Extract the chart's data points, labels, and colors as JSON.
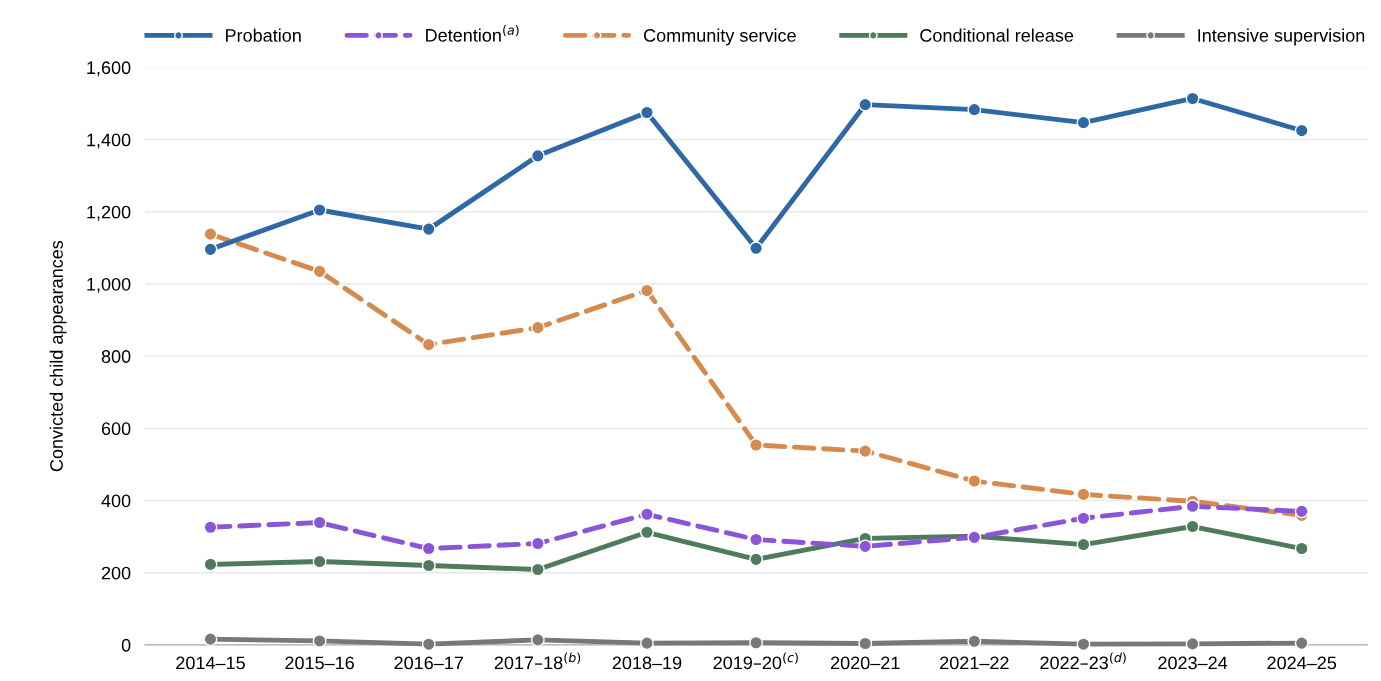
{
  "chart_data": {
    "type": "line",
    "ylabel": "Convicted child appearances",
    "categories": [
      "2014–15",
      "2015–16",
      "2016–17",
      "2017–18$^{(b)}$",
      "2018–19",
      "2019–20$^{(c)}$",
      "2020–21",
      "2021–22",
      "2022–23$^{(d)}$",
      "2023–24",
      "2024–25"
    ],
    "series": [
      {
        "name": "Probation",
        "color": "#2e68a5",
        "line_style": "solid",
        "values": [
          1096,
          1205,
          1152,
          1355,
          1475,
          1099,
          1497,
          1483,
          1447,
          1514,
          1425
        ]
      },
      {
        "name": "Detention$^{(a)}$",
        "color": "#8a55d6",
        "line_style": "dashed",
        "values": [
          326,
          339,
          267,
          281,
          362,
          292,
          273,
          298,
          351,
          384,
          370
        ]
      },
      {
        "name": "Community service",
        "color": "#d68a4e",
        "line_style": "dashed",
        "values": [
          1138,
          1035,
          832,
          879,
          982,
          554,
          537,
          454,
          417,
          398,
          359
        ]
      },
      {
        "name": "Conditional release",
        "color": "#4e7b5c",
        "line_style": "solid",
        "values": [
          223,
          231,
          220,
          209,
          312,
          237,
          295,
          301,
          278,
          328,
          267
        ]
      },
      {
        "name": "Intensive supervision",
        "color": "#787878",
        "line_style": "solid",
        "values": [
          16,
          11,
          2,
          14,
          5,
          6,
          4,
          10,
          2,
          3,
          5
        ]
      }
    ],
    "ylim": [
      0,
      1600
    ],
    "yticks": [
      0,
      {
        "value": 200,
        "label": "200"
      },
      {
        "value": 400,
        "label": "400"
      },
      {
        "value": 600,
        "label": "600"
      },
      {
        "value": 800,
        "label": "800"
      },
      {
        "value": 1000,
        "label": "1,000"
      },
      {
        "value": 1200,
        "label": "1,200"
      },
      {
        "value": 1400,
        "label": "1,400"
      },
      {
        "value": 1600,
        "label": "1,600"
      }
    ],
    "grid": "y",
    "legend": "top",
    "marker": "circle"
  }
}
